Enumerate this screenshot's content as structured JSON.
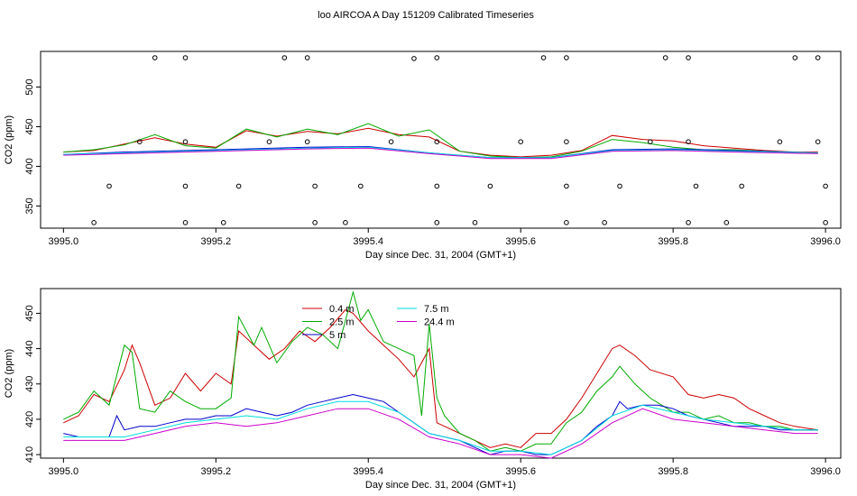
{
  "title": "loo AIRCOA A  Day 151209  Calibrated Timeseries",
  "chart_data": [
    {
      "type": "scatter",
      "xlabel": "Day since Dec. 31, 2004 (GMT+1)",
      "ylabel": "CO2 (ppm)",
      "xlim": [
        3994.97,
        3996.02
      ],
      "ylim": [
        322,
        545
      ],
      "x_ticks": [
        "3995.0",
        "3995.2",
        "3995.4",
        "3995.6",
        "3995.8",
        "3996.0"
      ],
      "y_ticks": [
        "350",
        "400",
        "450",
        "500"
      ],
      "grid": false,
      "legend": "none",
      "series": [
        {
          "color": "#cc0000",
          "shape": "line",
          "x": [
            3995.0,
            3995.04,
            3995.08,
            3995.12,
            3995.16,
            3995.2,
            3995.24,
            3995.28,
            3995.32,
            3995.36,
            3995.4,
            3995.44,
            3995.48,
            3995.52,
            3995.56,
            3995.6,
            3995.64,
            3995.68,
            3995.72,
            3995.76,
            3995.8,
            3995.84,
            3995.88,
            3995.92,
            3995.96,
            3995.99
          ],
          "y": [
            418,
            420,
            428,
            436,
            428,
            424,
            445,
            438,
            444,
            441,
            448,
            440,
            437,
            419,
            414,
            412,
            414,
            420,
            439,
            434,
            432,
            426,
            423,
            420,
            418,
            418
          ]
        },
        {
          "color": "#00aa00",
          "shape": "line",
          "x": [
            3995.0,
            3995.04,
            3995.08,
            3995.12,
            3995.16,
            3995.2,
            3995.24,
            3995.28,
            3995.32,
            3995.36,
            3995.4,
            3995.44,
            3995.48,
            3995.52,
            3995.56,
            3995.6,
            3995.64,
            3995.68,
            3995.72,
            3995.76,
            3995.8,
            3995.84,
            3995.88,
            3995.92,
            3995.96,
            3995.99
          ],
          "y": [
            418,
            421,
            427,
            440,
            426,
            423,
            447,
            437,
            447,
            440,
            454,
            438,
            446,
            419,
            413,
            411,
            412,
            419,
            434,
            430,
            424,
            421,
            421,
            419,
            417,
            417
          ]
        },
        {
          "color": "#0000cc",
          "shape": "line",
          "x": [
            3995.0,
            3995.08,
            3995.16,
            3995.24,
            3995.32,
            3995.4,
            3995.48,
            3995.56,
            3995.64,
            3995.72,
            3995.8,
            3995.88,
            3995.99
          ],
          "y": [
            415,
            418,
            420,
            422,
            424,
            425,
            417,
            411,
            411,
            421,
            422,
            420,
            417
          ]
        },
        {
          "color": "#00dddd",
          "shape": "line",
          "x": [
            3995.0,
            3995.08,
            3995.16,
            3995.24,
            3995.32,
            3995.4,
            3995.48,
            3995.56,
            3995.64,
            3995.72,
            3995.8,
            3995.88,
            3995.99
          ],
          "y": [
            415,
            417,
            419,
            421,
            423,
            424,
            417,
            411,
            411,
            420,
            421,
            419,
            417
          ]
        },
        {
          "color": "#cc00cc",
          "shape": "line",
          "x": [
            3995.0,
            3995.08,
            3995.16,
            3995.24,
            3995.32,
            3995.4,
            3995.48,
            3995.56,
            3995.64,
            3995.72,
            3995.8,
            3995.88,
            3995.99
          ],
          "y": [
            414,
            416,
            418,
            420,
            422,
            423,
            416,
            410,
            410,
            419,
            420,
            418,
            416
          ]
        },
        {
          "color": "#000000",
          "shape": "circle",
          "x": [
            3995.12,
            3995.16,
            3995.29,
            3995.32,
            3995.46,
            3995.49,
            3995.63,
            3995.66,
            3995.79,
            3995.82,
            3995.96,
            3995.99
          ],
          "y": [
            537,
            537,
            537,
            537,
            536,
            537,
            537,
            537,
            537,
            537,
            537,
            537
          ]
        },
        {
          "color": "#000000",
          "shape": "circle",
          "x": [
            3995.1,
            3995.16,
            3995.27,
            3995.32,
            3995.43,
            3995.49,
            3995.6,
            3995.66,
            3995.77,
            3995.82,
            3995.94,
            3995.99
          ],
          "y": [
            431,
            431,
            431,
            431,
            431,
            431,
            431,
            431,
            431,
            431,
            431,
            431
          ]
        },
        {
          "color": "#000000",
          "shape": "circle",
          "x": [
            3995.06,
            3995.16,
            3995.23,
            3995.33,
            3995.39,
            3995.49,
            3995.56,
            3995.66,
            3995.73,
            3995.83,
            3995.89,
            3996.0
          ],
          "y": [
            375,
            375,
            375,
            375,
            375,
            375,
            375,
            375,
            375,
            375,
            375,
            375
          ]
        },
        {
          "color": "#000000",
          "shape": "circle",
          "x": [
            3995.04,
            3995.16,
            3995.21,
            3995.33,
            3995.37,
            3995.49,
            3995.54,
            3995.66,
            3995.71,
            3995.82,
            3995.87,
            3996.0
          ],
          "y": [
            329,
            329,
            329,
            329,
            329,
            329,
            329,
            329,
            329,
            329,
            329,
            329
          ]
        }
      ]
    },
    {
      "type": "line",
      "xlabel": "Day since Dec. 31, 2004 (GMT+1)",
      "ylabel": "CO2 (ppm)",
      "xlim": [
        3994.97,
        3996.02
      ],
      "ylim": [
        409,
        457
      ],
      "x_ticks": [
        "3995.0",
        "3995.2",
        "3995.4",
        "3995.6",
        "3995.8",
        "3996.0"
      ],
      "y_ticks": [
        "410",
        "420",
        "430",
        "440",
        "450"
      ],
      "grid": false,
      "legend": "top-center",
      "series": [
        {
          "name": "0.4 m",
          "color": "#cc0000",
          "x": [
            3995.0,
            3995.02,
            3995.04,
            3995.06,
            3995.08,
            3995.09,
            3995.1,
            3995.12,
            3995.14,
            3995.16,
            3995.18,
            3995.2,
            3995.22,
            3995.23,
            3995.25,
            3995.27,
            3995.29,
            3995.31,
            3995.33,
            3995.35,
            3995.37,
            3995.38,
            3995.4,
            3995.42,
            3995.44,
            3995.46,
            3995.48,
            3995.49,
            3995.52,
            3995.54,
            3995.56,
            3995.58,
            3995.6,
            3995.62,
            3995.64,
            3995.66,
            3995.68,
            3995.7,
            3995.72,
            3995.73,
            3995.75,
            3995.77,
            3995.8,
            3995.82,
            3995.84,
            3995.86,
            3995.88,
            3995.9,
            3995.92,
            3995.94,
            3995.96,
            3995.99
          ],
          "y": [
            419,
            421,
            427,
            425,
            434,
            441,
            436,
            424,
            426,
            433,
            428,
            433,
            430,
            445,
            441,
            437,
            440,
            445,
            442,
            446,
            451,
            450,
            445,
            441,
            437,
            432,
            440,
            419,
            416,
            414,
            412,
            413,
            412,
            416,
            416,
            420,
            426,
            433,
            440,
            441,
            438,
            434,
            432,
            427,
            426,
            427,
            426,
            423,
            421,
            419,
            418,
            417
          ]
        },
        {
          "name": "2.5 m",
          "color": "#00aa00",
          "x": [
            3995.0,
            3995.02,
            3995.04,
            3995.06,
            3995.08,
            3995.09,
            3995.1,
            3995.12,
            3995.14,
            3995.16,
            3995.18,
            3995.2,
            3995.22,
            3995.23,
            3995.25,
            3995.26,
            3995.28,
            3995.3,
            3995.32,
            3995.34,
            3995.36,
            3995.38,
            3995.39,
            3995.4,
            3995.42,
            3995.44,
            3995.46,
            3995.47,
            3995.48,
            3995.49,
            3995.5,
            3995.52,
            3995.54,
            3995.56,
            3995.58,
            3995.6,
            3995.62,
            3995.64,
            3995.66,
            3995.68,
            3995.7,
            3995.72,
            3995.73,
            3995.75,
            3995.77,
            3995.8,
            3995.82,
            3995.84,
            3995.86,
            3995.88,
            3995.9,
            3995.92,
            3995.94,
            3995.96,
            3995.99
          ],
          "y": [
            420,
            422,
            428,
            424,
            441,
            439,
            423,
            422,
            428,
            425,
            423,
            423,
            426,
            449,
            441,
            446,
            436,
            442,
            446,
            444,
            440,
            456,
            448,
            451,
            442,
            440,
            438,
            421,
            447,
            426,
            421,
            416,
            414,
            411,
            412,
            411,
            413,
            413,
            419,
            422,
            428,
            432,
            435,
            430,
            426,
            422,
            422,
            420,
            421,
            419,
            419,
            418,
            418,
            417,
            417
          ]
        },
        {
          "name": "5 m",
          "color": "#0000cc",
          "x": [
            3995.0,
            3995.02,
            3995.04,
            3995.06,
            3995.07,
            3995.08,
            3995.1,
            3995.12,
            3995.14,
            3995.16,
            3995.18,
            3995.2,
            3995.22,
            3995.24,
            3995.26,
            3995.28,
            3995.3,
            3995.32,
            3995.34,
            3995.36,
            3995.38,
            3995.4,
            3995.42,
            3995.44,
            3995.46,
            3995.48,
            3995.5,
            3995.52,
            3995.54,
            3995.56,
            3995.58,
            3995.6,
            3995.62,
            3995.64,
            3995.66,
            3995.68,
            3995.7,
            3995.72,
            3995.73,
            3995.74,
            3995.76,
            3995.78,
            3995.8,
            3995.82,
            3995.84,
            3995.86,
            3995.88,
            3995.9,
            3995.92,
            3995.94,
            3995.96,
            3995.99
          ],
          "y": [
            416,
            415,
            415,
            415,
            421,
            417,
            418,
            418,
            419,
            420,
            420,
            421,
            421,
            423,
            422,
            421,
            422,
            424,
            425,
            426,
            427,
            426,
            425,
            422,
            419,
            416,
            415,
            414,
            412,
            410,
            411,
            411,
            410,
            410,
            412,
            414,
            418,
            421,
            425,
            423,
            424,
            424,
            423,
            421,
            420,
            419,
            418,
            418,
            418,
            417,
            417,
            417
          ]
        },
        {
          "name": "7.5 m",
          "color": "#00dddd",
          "x": [
            3995.0,
            3995.04,
            3995.08,
            3995.12,
            3995.16,
            3995.2,
            3995.24,
            3995.28,
            3995.32,
            3995.36,
            3995.4,
            3995.44,
            3995.48,
            3995.52,
            3995.56,
            3995.6,
            3995.64,
            3995.68,
            3995.72,
            3995.76,
            3995.8,
            3995.84,
            3995.88,
            3995.92,
            3995.96,
            3995.99
          ],
          "y": [
            415,
            415,
            415,
            417,
            419,
            420,
            421,
            420,
            423,
            425,
            425,
            422,
            416,
            414,
            411,
            411,
            410,
            414,
            421,
            424,
            422,
            420,
            419,
            418,
            417,
            417
          ]
        },
        {
          "name": "24.4 m",
          "color": "#cc00cc",
          "x": [
            3995.0,
            3995.04,
            3995.08,
            3995.12,
            3995.16,
            3995.2,
            3995.24,
            3995.28,
            3995.32,
            3995.36,
            3995.4,
            3995.44,
            3995.48,
            3995.52,
            3995.56,
            3995.6,
            3995.64,
            3995.68,
            3995.72,
            3995.76,
            3995.8,
            3995.84,
            3995.88,
            3995.92,
            3995.96,
            3995.99
          ],
          "y": [
            414,
            414,
            414,
            416,
            418,
            419,
            418,
            419,
            421,
            423,
            423,
            420,
            415,
            413,
            410,
            410,
            409,
            413,
            419,
            423,
            420,
            419,
            418,
            417,
            416,
            416
          ]
        }
      ]
    }
  ]
}
